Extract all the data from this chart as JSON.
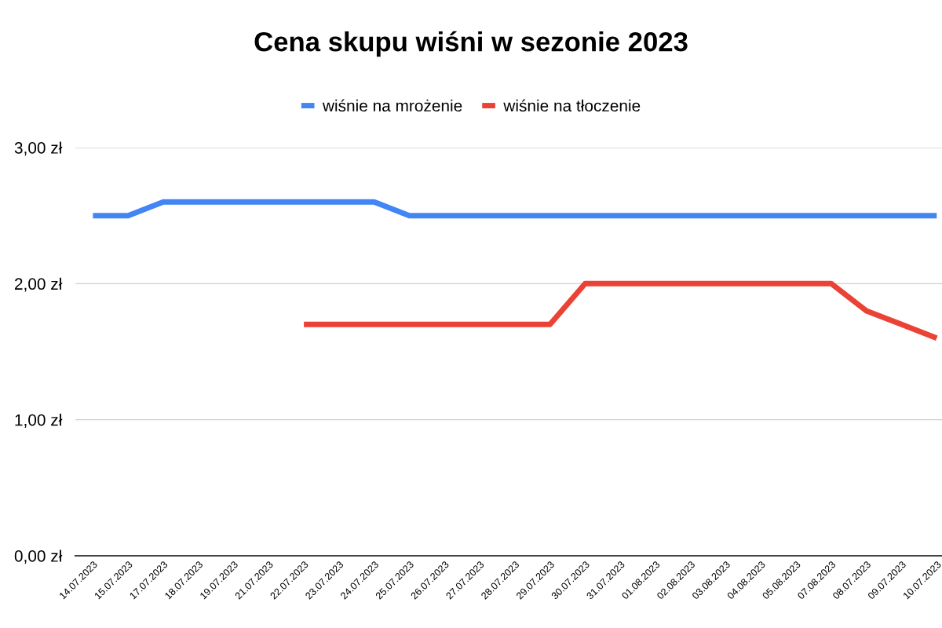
{
  "chart_data": {
    "type": "line",
    "title": "Cena skupu wiśni w sezonie 2023",
    "categories": [
      "14.07.2023",
      "15.07.2023",
      "17.07.2023",
      "18.07.2023",
      "19.07.2023",
      "21.07.2023",
      "22.07.2023",
      "23.07.2023",
      "24.07.2023",
      "25.07.2023",
      "26.07.2023",
      "27.07.2023",
      "28.07.2023",
      "29.07.2023",
      "30.07.2023",
      "31.07.2023",
      "01.08.2023",
      "02.08.2023",
      "03.08.2023",
      "04.08.2023",
      "05.08.2023",
      "07.08.2023",
      "08.07.2023",
      "09.07.2023",
      "10.07.2023"
    ],
    "series": [
      {
        "name": "wiśnie na mrożenie",
        "color": "#4285f4",
        "values": [
          2.5,
          2.5,
          2.6,
          2.6,
          2.6,
          2.6,
          2.6,
          2.6,
          2.6,
          2.5,
          2.5,
          2.5,
          2.5,
          2.5,
          2.5,
          2.5,
          2.5,
          2.5,
          2.5,
          2.5,
          2.5,
          2.5,
          2.5,
          2.5,
          2.5
        ]
      },
      {
        "name": "wiśnie na tłoczenie",
        "color": "#ea4335",
        "values": [
          null,
          null,
          null,
          null,
          null,
          null,
          1.7,
          1.7,
          1.7,
          1.7,
          1.7,
          1.7,
          1.7,
          1.7,
          2.0,
          2.0,
          2.0,
          2.0,
          2.0,
          2.0,
          2.0,
          2.0,
          1.8,
          1.7,
          1.6
        ]
      }
    ],
    "ylim": [
      0,
      3
    ],
    "yticks": [
      {
        "value": 0,
        "label": "0,00 zł"
      },
      {
        "value": 1,
        "label": "1,00 zł"
      },
      {
        "value": 2,
        "label": "2,00 zł"
      },
      {
        "value": 3,
        "label": "3,00 zł"
      }
    ],
    "grid": "y",
    "legend": "top",
    "marker": "none",
    "line_style": "solid"
  }
}
